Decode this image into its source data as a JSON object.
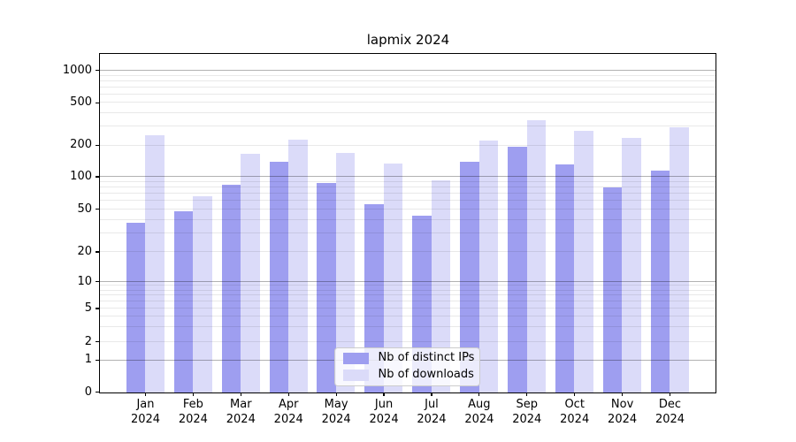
{
  "chart": {
    "title": "lapmix 2024",
    "legend": {
      "items": [
        {
          "label": "Nb of distinct IPs",
          "color": "#9e9ef0"
        },
        {
          "label": "Nb of downloads",
          "color": "#dbdbf9"
        }
      ]
    }
  },
  "chart_data": {
    "type": "bar",
    "title": "lapmix 2024",
    "yscale": "log-like (0,1,2,5,10,20,50,100,200,500,1000)",
    "grid": true,
    "legend_position": "lower center",
    "background": "#ffffff",
    "yticks": [
      0,
      1,
      2,
      5,
      10,
      20,
      50,
      100,
      200,
      500,
      1000
    ],
    "ylim": [
      0,
      1400
    ],
    "categories": [
      {
        "month": "Jan",
        "year": "2024"
      },
      {
        "month": "Feb",
        "year": "2024"
      },
      {
        "month": "Mar",
        "year": "2024"
      },
      {
        "month": "Apr",
        "year": "2024"
      },
      {
        "month": "May",
        "year": "2024"
      },
      {
        "month": "Jun",
        "year": "2024"
      },
      {
        "month": "Jul",
        "year": "2024"
      },
      {
        "month": "Aug",
        "year": "2024"
      },
      {
        "month": "Sep",
        "year": "2024"
      },
      {
        "month": "Oct",
        "year": "2024"
      },
      {
        "month": "Nov",
        "year": "2024"
      },
      {
        "month": "Dec",
        "year": "2024"
      }
    ],
    "series": [
      {
        "name": "Nb of distinct IPs",
        "slug": "distinct-ips",
        "color": "#9e9ef0",
        "values": [
          37,
          48,
          84,
          140,
          88,
          55,
          43,
          140,
          192,
          130,
          80,
          115
        ]
      },
      {
        "name": "Nb of downloads",
        "slug": "downloads",
        "color": "#dbdbf9",
        "values": [
          250,
          66,
          165,
          226,
          170,
          134,
          93,
          221,
          345,
          272,
          234,
          293
        ]
      }
    ]
  }
}
